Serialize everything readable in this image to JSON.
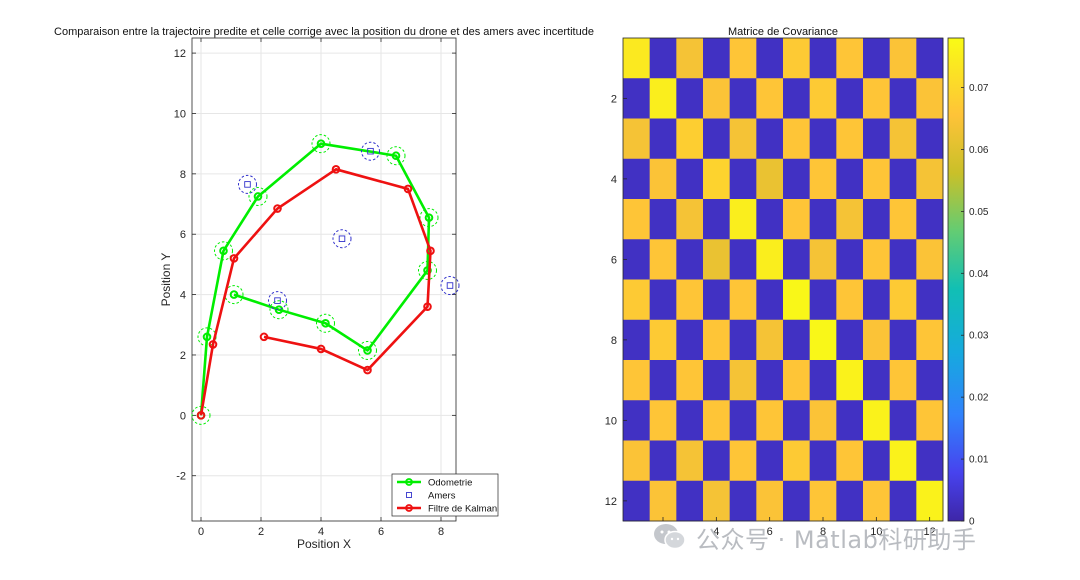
{
  "chart_data": [
    {
      "type": "line",
      "title": "Comparaison entre la trajectoire predite et celle corrige avec la position du drone et des amers avec incertitude",
      "xlabel": "Position X",
      "ylabel": "Position Y",
      "xlim": [
        -0.3,
        8.5
      ],
      "ylim": [
        -3.5,
        12.5
      ],
      "xticks": [
        0,
        2,
        4,
        6,
        8
      ],
      "yticks": [
        -2,
        0,
        2,
        4,
        6,
        8,
        10,
        12
      ],
      "grid": true,
      "legend_position": "bottom-right",
      "series": [
        {
          "name": "Odometrie",
          "color": "#00ee00",
          "marker": "circle",
          "uncertainty_circles": true,
          "x": [
            0,
            0.2,
            0.75,
            1.9,
            4.0,
            6.5,
            7.6,
            7.55,
            5.55,
            4.15,
            2.6,
            1.1
          ],
          "y": [
            0,
            2.6,
            5.45,
            7.25,
            9.0,
            8.6,
            6.55,
            4.8,
            2.15,
            3.05,
            3.5,
            4.0
          ]
        },
        {
          "name": "Amers",
          "color": "#3333cc",
          "marker": "square",
          "line": false,
          "uncertainty_circles": true,
          "x": [
            1.55,
            5.65,
            4.7,
            2.55,
            8.3
          ],
          "y": [
            7.65,
            8.75,
            5.85,
            3.8,
            4.3
          ]
        },
        {
          "name": "Filtre de Kalman",
          "color": "#ee1111",
          "marker": "circle",
          "x": [
            0,
            0.4,
            1.1,
            2.55,
            4.5,
            6.9,
            7.65,
            7.55,
            5.55,
            4.0,
            2.1
          ],
          "y": [
            0,
            2.35,
            5.2,
            6.85,
            8.15,
            7.5,
            5.45,
            3.6,
            1.5,
            2.2,
            2.6
          ]
        }
      ]
    },
    {
      "type": "heatmap",
      "title": "Matrice de Covariance",
      "rows": 12,
      "cols": 12,
      "xticks": [
        2,
        4,
        6,
        8,
        10,
        12
      ],
      "yticks": [
        2,
        4,
        6,
        8,
        10,
        12
      ],
      "colorbar": {
        "min": 0,
        "max": 0.078,
        "ticks": [
          0,
          0.01,
          0.02,
          0.03,
          0.04,
          0.05,
          0.06,
          0.07
        ]
      },
      "values": [
        [
          0.074,
          0.003,
          0.064,
          0.003,
          0.066,
          0.003,
          0.067,
          0.003,
          0.066,
          0.003,
          0.065,
          0.003
        ],
        [
          0.003,
          0.075,
          0.003,
          0.065,
          0.003,
          0.066,
          0.003,
          0.067,
          0.003,
          0.066,
          0.003,
          0.065
        ],
        [
          0.064,
          0.003,
          0.068,
          0.003,
          0.064,
          0.003,
          0.066,
          0.003,
          0.066,
          0.003,
          0.064,
          0.003
        ],
        [
          0.003,
          0.065,
          0.003,
          0.069,
          0.003,
          0.062,
          0.003,
          0.066,
          0.003,
          0.066,
          0.003,
          0.064
        ],
        [
          0.066,
          0.003,
          0.064,
          0.003,
          0.075,
          0.003,
          0.066,
          0.003,
          0.064,
          0.003,
          0.066,
          0.003
        ],
        [
          0.003,
          0.066,
          0.003,
          0.062,
          0.003,
          0.075,
          0.003,
          0.064,
          0.003,
          0.066,
          0.003,
          0.065
        ],
        [
          0.067,
          0.003,
          0.066,
          0.003,
          0.066,
          0.003,
          0.077,
          0.003,
          0.066,
          0.003,
          0.067,
          0.003
        ],
        [
          0.003,
          0.067,
          0.003,
          0.066,
          0.003,
          0.064,
          0.003,
          0.077,
          0.003,
          0.065,
          0.003,
          0.066
        ],
        [
          0.066,
          0.003,
          0.066,
          0.003,
          0.064,
          0.003,
          0.066,
          0.003,
          0.076,
          0.003,
          0.066,
          0.003
        ],
        [
          0.003,
          0.066,
          0.003,
          0.066,
          0.003,
          0.066,
          0.003,
          0.065,
          0.003,
          0.076,
          0.003,
          0.066
        ],
        [
          0.065,
          0.003,
          0.064,
          0.003,
          0.066,
          0.003,
          0.067,
          0.003,
          0.066,
          0.003,
          0.076,
          0.003
        ],
        [
          0.003,
          0.065,
          0.003,
          0.064,
          0.003,
          0.065,
          0.003,
          0.066,
          0.003,
          0.066,
          0.003,
          0.076
        ]
      ]
    }
  ],
  "watermark": {
    "text": "公众号 · Matlab科研助手",
    "icon": "wechat-icon"
  }
}
